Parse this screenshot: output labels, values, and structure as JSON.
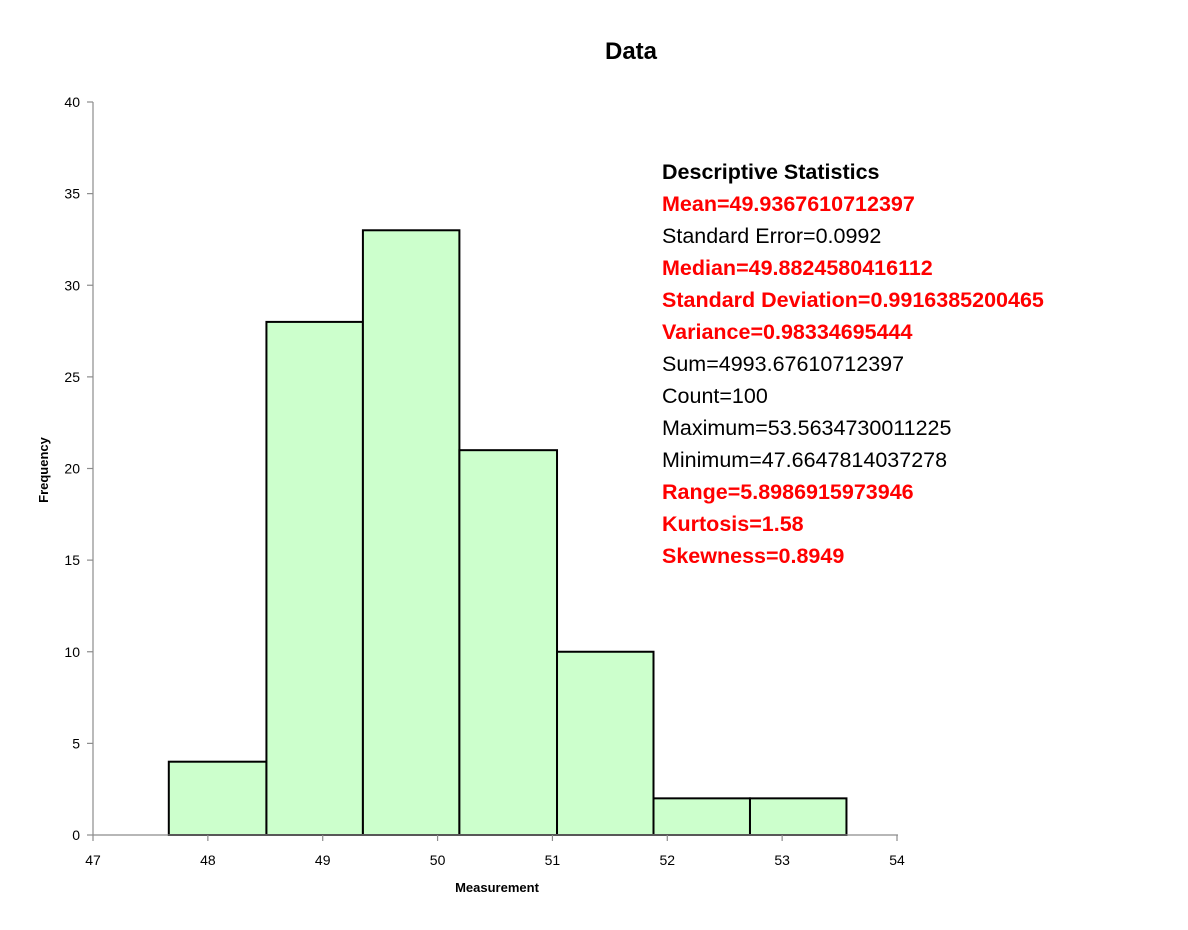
{
  "chart_data": {
    "type": "bar",
    "title": "Data",
    "xlabel": "Measurement",
    "ylabel": "Frequency",
    "xlim": [
      47,
      54
    ],
    "ylim": [
      0,
      40
    ],
    "x_ticks": [
      "47",
      "48",
      "49",
      "50",
      "51",
      "52",
      "53",
      "54"
    ],
    "y_ticks": [
      "0",
      "5",
      "10",
      "15",
      "20",
      "25",
      "30",
      "35",
      "40"
    ],
    "bins": [
      {
        "start": 47.66,
        "end": 48.51,
        "value": 4
      },
      {
        "start": 48.51,
        "end": 49.35,
        "value": 28
      },
      {
        "start": 49.35,
        "end": 50.19,
        "value": 33
      },
      {
        "start": 50.19,
        "end": 51.04,
        "value": 21
      },
      {
        "start": 51.04,
        "end": 51.88,
        "value": 10
      },
      {
        "start": 51.88,
        "end": 52.72,
        "value": 2
      },
      {
        "start": 52.72,
        "end": 53.56,
        "value": 2
      }
    ],
    "bar_color": "#CCFFCC",
    "bar_edge_color": "#000000",
    "grid": false,
    "legend": "none"
  },
  "stats": {
    "heading": "Descriptive Statistics",
    "lines": [
      {
        "text": "Mean=49.9367610712397",
        "color": "#FF0000",
        "bold": true
      },
      {
        "text": "Standard Error=0.0992",
        "color": "#000000",
        "bold": false
      },
      {
        "text": "Median=49.8824580416112",
        "color": "#FF0000",
        "bold": true
      },
      {
        "text": "Standard Deviation=0.9916385200465",
        "color": "#FF0000",
        "bold": true
      },
      {
        "text": "Variance=0.98334695444",
        "color": "#FF0000",
        "bold": true
      },
      {
        "text": "Sum=4993.67610712397",
        "color": "#000000",
        "bold": false
      },
      {
        "text": "Count=100",
        "color": "#000000",
        "bold": false
      },
      {
        "text": "Maximum=53.5634730011225",
        "color": "#000000",
        "bold": false
      },
      {
        "text": "Minimum=47.6647814037278",
        "color": "#000000",
        "bold": false
      },
      {
        "text": "Range=5.8986915973946",
        "color": "#FF0000",
        "bold": true
      },
      {
        "text": "Kurtosis=1.58",
        "color": "#FF0000",
        "bold": true
      },
      {
        "text": "Skewness=0.8949",
        "color": "#FF0000",
        "bold": true
      }
    ]
  }
}
